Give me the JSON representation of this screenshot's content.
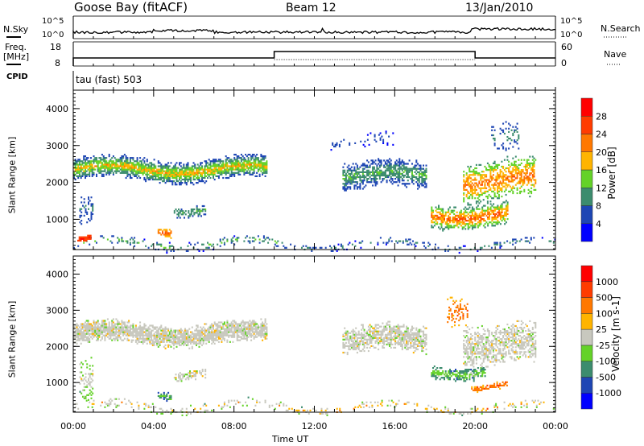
{
  "header": {
    "station": "Goose Bay (fitACF)",
    "beam": "Beam 12",
    "date": "13/Jan/2010"
  },
  "top_panels": {
    "nsky_label": "N.Sky",
    "nsearch_label": "N.Search",
    "log_top": "10^5",
    "log_bottom": "10^0",
    "freq_label": "Freq.",
    "freq_unit": "[MHz]",
    "freq_top": "18",
    "freq_bottom": "8",
    "nave_label": "Nave",
    "nave_top": "60",
    "nave_bottom": "0",
    "cpid_label": "CPID",
    "cpid_value": "tau (fast) 503"
  },
  "chart_data": [
    {
      "type": "heatmap",
      "name": "power",
      "ylabel": "Slant Range [km]",
      "xlabel": "Time UT",
      "ylim": [
        180,
        4500
      ],
      "xlim": [
        0,
        24
      ],
      "yticks": [
        "1000",
        "2000",
        "3000",
        "4000"
      ],
      "xticks": [
        "00:00",
        "04:00",
        "08:00",
        "12:00",
        "16:00",
        "20:00",
        "00:00"
      ],
      "colorbar": {
        "label": "Power [dB]",
        "ticks": [
          "4",
          "8",
          "12",
          "16",
          "20",
          "24",
          "28"
        ],
        "colors": [
          "#0000ff",
          "#1e46b4",
          "#3c8c6e",
          "#64d228",
          "#ffb400",
          "#ff7800",
          "#ff3c00",
          "#ff0000"
        ]
      },
      "regions": [
        {
          "t": [
            0,
            9.6
          ],
          "r": [
            2050,
            2650
          ],
          "v": [
            4,
            22
          ],
          "d": 0.75
        },
        {
          "t": [
            0,
            10.5
          ],
          "r": [
            200,
            480
          ],
          "v": [
            2,
            16
          ],
          "d": 0.18
        },
        {
          "t": [
            0.2,
            0.9
          ],
          "r": [
            350,
            500
          ],
          "v": [
            24,
            30
          ],
          "d": 0.9
        },
        {
          "t": [
            0.3,
            1
          ],
          "r": [
            800,
            1600
          ],
          "v": [
            4,
            10
          ],
          "d": 0.25
        },
        {
          "t": [
            4.2,
            4.9
          ],
          "r": [
            600,
            850
          ],
          "v": [
            16,
            26
          ],
          "d": 0.7
        },
        {
          "t": [
            5,
            6.6
          ],
          "r": [
            1150,
            1450
          ],
          "v": [
            6,
            14
          ],
          "d": 0.5
        },
        {
          "t": [
            13.4,
            17.6
          ],
          "r": [
            1800,
            2550
          ],
          "v": [
            4,
            14
          ],
          "d": 0.6
        },
        {
          "t": [
            12.8,
            16
          ],
          "r": [
            2900,
            3300
          ],
          "v": [
            2,
            8
          ],
          "d": 0.1
        },
        {
          "t": [
            17.8,
            21.6
          ],
          "r": [
            800,
            1450
          ],
          "v": [
            8,
            28
          ],
          "d": 0.6
        },
        {
          "t": [
            19.4,
            23
          ],
          "r": [
            1500,
            2600
          ],
          "v": [
            10,
            26
          ],
          "d": 0.5
        },
        {
          "t": [
            20.8,
            22.2
          ],
          "r": [
            2800,
            3600
          ],
          "v": [
            4,
            12
          ],
          "d": 0.2
        },
        {
          "t": [
            10.5,
            24
          ],
          "r": [
            200,
            420
          ],
          "v": [
            2,
            12
          ],
          "d": 0.15
        }
      ]
    },
    {
      "type": "heatmap",
      "name": "velocity",
      "ylabel": "Slant Range [km]",
      "xlabel": "Time UT",
      "ylim": [
        180,
        4500
      ],
      "xlim": [
        0,
        24
      ],
      "yticks": [
        "1000",
        "2000",
        "3000",
        "4000"
      ],
      "xticks": [
        "00:00",
        "04:00",
        "08:00",
        "12:00",
        "16:00",
        "20:00",
        "00:00"
      ],
      "colorbar": {
        "label": "Velocity [m s-1]",
        "ticks": [
          "1000",
          "500",
          "100",
          "25",
          "-25",
          "-100",
          "-500",
          "-1000"
        ],
        "colors": [
          "#0000ff",
          "#1e46b4",
          "#3c8c6e",
          "#64d228",
          "#c8c8be",
          "#ffb400",
          "#ff7800",
          "#ff3c00",
          "#ff0000"
        ]
      },
      "regions": [
        {
          "t": [
            0,
            9.6
          ],
          "r": [
            2050,
            2650
          ],
          "v": [
            4,
            4
          ],
          "d": 0.75
        },
        {
          "t": [
            0,
            10.5
          ],
          "r": [
            200,
            480
          ],
          "v": [
            3,
            5
          ],
          "d": 0.18
        },
        {
          "t": [
            0.3,
            1
          ],
          "r": [
            400,
            1600
          ],
          "v": [
            3,
            4
          ],
          "d": 0.3
        },
        {
          "t": [
            4.2,
            4.9
          ],
          "r": [
            600,
            850
          ],
          "v": [
            1,
            3
          ],
          "d": 0.6
        },
        {
          "t": [
            5,
            6.6
          ],
          "r": [
            1150,
            1450
          ],
          "v": [
            4,
            4
          ],
          "d": 0.5
        },
        {
          "t": [
            13.4,
            17.6
          ],
          "r": [
            1800,
            2550
          ],
          "v": [
            4,
            4
          ],
          "d": 0.6
        },
        {
          "t": [
            17.8,
            20.5
          ],
          "r": [
            1150,
            1500
          ],
          "v": [
            2,
            3
          ],
          "d": 0.6
        },
        {
          "t": [
            19.8,
            21.6
          ],
          "r": [
            800,
            1000
          ],
          "v": [
            5,
            7
          ],
          "d": 0.6
        },
        {
          "t": [
            19.4,
            23
          ],
          "r": [
            1500,
            2600
          ],
          "v": [
            4,
            4
          ],
          "d": 0.5
        },
        {
          "t": [
            18.6,
            19.6
          ],
          "r": [
            2600,
            3500
          ],
          "v": [
            5,
            7
          ],
          "d": 0.25
        },
        {
          "t": [
            10.5,
            24
          ],
          "r": [
            200,
            420
          ],
          "v": [
            3,
            6
          ],
          "d": 0.15
        }
      ]
    }
  ]
}
